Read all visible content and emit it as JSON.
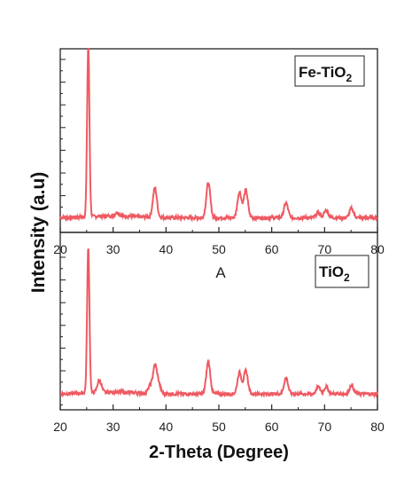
{
  "chart_data": [
    {
      "type": "line",
      "panel": "top",
      "legend_main": "Fe-TiO",
      "legend_sub": "2",
      "legend_placement": "top-right",
      "xlim": [
        20,
        80
      ],
      "xticks": [
        20,
        30,
        40,
        50,
        60,
        70,
        80
      ],
      "ylim": [
        0,
        1
      ],
      "line_color": "#ef5a62",
      "baseline": 0.08,
      "peaks": [
        {
          "x": 25.3,
          "y": 0.93
        },
        {
          "x": 30.8,
          "y": 0.02
        },
        {
          "x": 37.9,
          "y": 0.16
        },
        {
          "x": 48.0,
          "y": 0.19
        },
        {
          "x": 53.9,
          "y": 0.14
        },
        {
          "x": 55.1,
          "y": 0.15
        },
        {
          "x": 62.7,
          "y": 0.08
        },
        {
          "x": 68.8,
          "y": 0.03
        },
        {
          "x": 70.3,
          "y": 0.04
        },
        {
          "x": 75.1,
          "y": 0.05
        }
      ]
    },
    {
      "type": "line",
      "panel": "bottom",
      "legend_main": "TiO",
      "legend_sub": "2",
      "legend_placement": "top-right",
      "annotation": "A",
      "xlabel": "2-Theta (Degree)",
      "xlim": [
        20,
        80
      ],
      "xticks": [
        20,
        30,
        40,
        50,
        60,
        70,
        80
      ],
      "ylim": [
        0,
        1
      ],
      "line_color": "#ef5a62",
      "baseline": 0.09,
      "peaks": [
        {
          "x": 25.3,
          "y": 0.82
        },
        {
          "x": 27.4,
          "y": 0.07
        },
        {
          "x": 37.0,
          "y": 0.04
        },
        {
          "x": 37.9,
          "y": 0.15
        },
        {
          "x": 38.6,
          "y": 0.05
        },
        {
          "x": 48.0,
          "y": 0.18
        },
        {
          "x": 53.9,
          "y": 0.12
        },
        {
          "x": 55.1,
          "y": 0.13
        },
        {
          "x": 62.7,
          "y": 0.09
        },
        {
          "x": 68.8,
          "y": 0.04
        },
        {
          "x": 70.3,
          "y": 0.04
        },
        {
          "x": 75.1,
          "y": 0.05
        }
      ]
    }
  ],
  "ylabel": "Intensity (a.u)"
}
